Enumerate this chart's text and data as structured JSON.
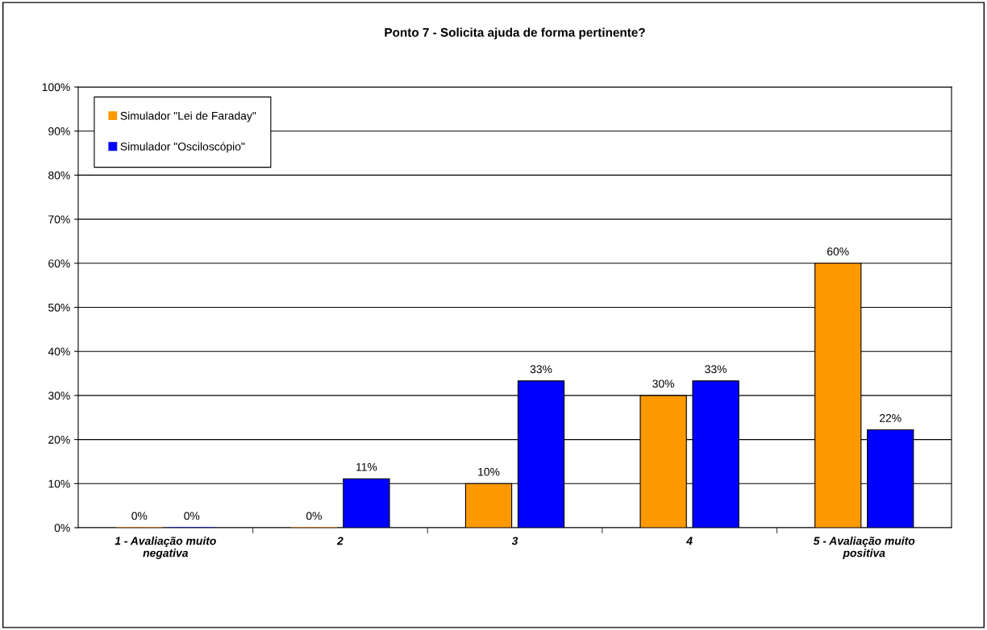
{
  "chart_data": {
    "type": "bar",
    "title": "Ponto 7 - Solicita ajuda de forma pertinente?",
    "categories": [
      "1 - Avaliação muito\nnegativa",
      "2",
      "3",
      "4",
      "5 - Avaliação muito\npositiva"
    ],
    "series": [
      {
        "name": "Simulador \"Lei de Faraday\"",
        "color": "#ff9900",
        "values": [
          0,
          0,
          10,
          30,
          60
        ],
        "value_labels": [
          "0%",
          "0%",
          "10%",
          "30%",
          "60%"
        ]
      },
      {
        "name": "Simulador \"Osciloscópio\"",
        "color": "#0000ff",
        "values": [
          0,
          11.1,
          33.3,
          33.3,
          22.2
        ],
        "value_labels": [
          "0%",
          "11%",
          "33%",
          "33%",
          "22%"
        ]
      }
    ],
    "ylim": [
      0,
      100
    ],
    "yticks": [
      {
        "value": 0,
        "label": "0%"
      },
      {
        "value": 10,
        "label": "10%"
      },
      {
        "value": 20,
        "label": "20%"
      },
      {
        "value": 30,
        "label": "30%"
      },
      {
        "value": 40,
        "label": "40%"
      },
      {
        "value": 50,
        "label": "50%"
      },
      {
        "value": 60,
        "label": "60%"
      },
      {
        "value": 70,
        "label": "70%"
      },
      {
        "value": 80,
        "label": "80%"
      },
      {
        "value": 90,
        "label": "90%"
      },
      {
        "value": 100,
        "label": "100%"
      }
    ],
    "grid": "y",
    "legend": "top left"
  }
}
